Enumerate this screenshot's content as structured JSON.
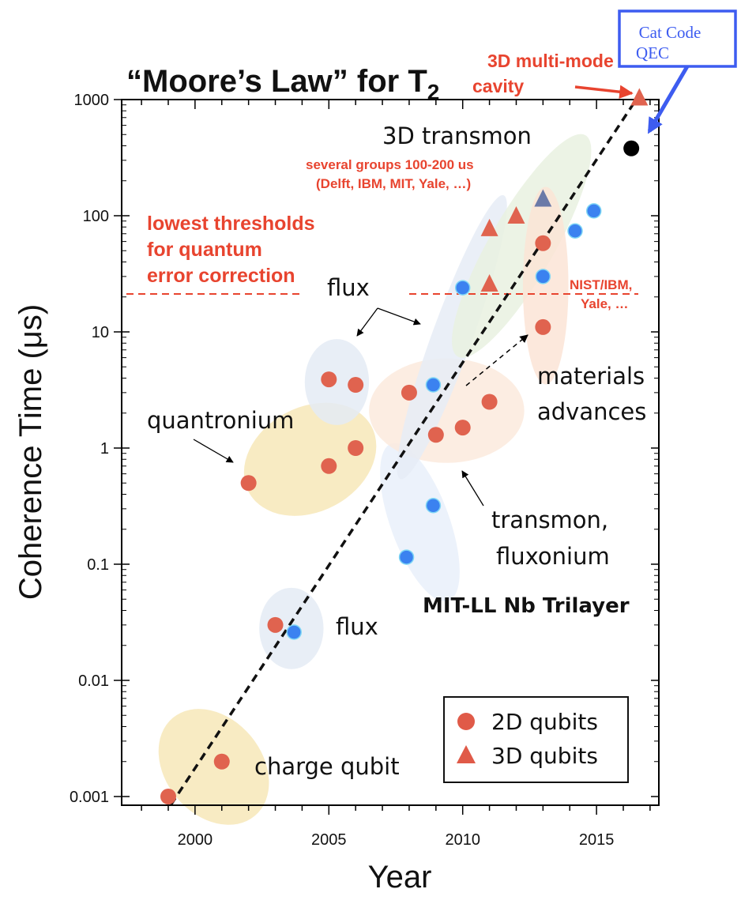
{
  "chart_data": {
    "type": "scatter",
    "title": "“Moore’s Law” for T",
    "title_subscript": "2",
    "xlabel": "Year",
    "ylabel": "Coherence Time (μs)",
    "xlim": [
      1997.8,
      2017.2
    ],
    "ylim": [
      0.0009,
      1100
    ],
    "yscale": "log",
    "x_ticks": [
      2000,
      2005,
      2010,
      2015
    ],
    "x_tick_labels": [
      "2000",
      "2005",
      "2010",
      "2015"
    ],
    "y_ticks": [
      0.001,
      0.01,
      0.1,
      1,
      10,
      100,
      1000
    ],
    "y_tick_labels": [
      "0.001",
      "0.01",
      "0.1",
      "1",
      "10",
      "100",
      "1000"
    ],
    "legend": {
      "placement": "bottom-right",
      "entries": [
        {
          "label": "2D qubits",
          "marker": "circle",
          "color": "#e05a48"
        },
        {
          "label": "3D qubits",
          "marker": "triangle",
          "color": "#e05a48"
        }
      ]
    },
    "series": [
      {
        "marker": "circle",
        "color": "#e0634f",
        "points": [
          {
            "x": 1999,
            "y": 0.001
          },
          {
            "x": 2001,
            "y": 0.002
          },
          {
            "x": 2003,
            "y": 0.03
          },
          {
            "x": 2002,
            "y": 0.5
          },
          {
            "x": 2005,
            "y": 0.7
          },
          {
            "x": 2006,
            "y": 1
          },
          {
            "x": 2005,
            "y": 3.9
          },
          {
            "x": 2006,
            "y": 3.5
          },
          {
            "x": 2008,
            "y": 3
          },
          {
            "x": 2009,
            "y": 1.3
          },
          {
            "x": 2010,
            "y": 1.5
          },
          {
            "x": 2011,
            "y": 2.5
          },
          {
            "x": 2013,
            "y": 11
          },
          {
            "x": 2013,
            "y": 58
          }
        ]
      },
      {
        "marker": "circle",
        "color": "#3b82f0",
        "points": [
          {
            "x": 2003.7,
            "y": 0.026
          },
          {
            "x": 2007.9,
            "y": 0.115
          },
          {
            "x": 2008.9,
            "y": 0.32
          },
          {
            "x": 2008.9,
            "y": 3.5
          },
          {
            "x": 2010,
            "y": 24
          },
          {
            "x": 2013,
            "y": 30
          },
          {
            "x": 2014.2,
            "y": 74
          },
          {
            "x": 2014.9,
            "y": 110
          }
        ]
      },
      {
        "marker": "triangle",
        "color": "#e0634f",
        "points": [
          {
            "x": 2011,
            "y": 26
          },
          {
            "x": 2011,
            "y": 78
          },
          {
            "x": 2012,
            "y": 100
          },
          {
            "x": 2016.6,
            "y": 1040
          }
        ]
      },
      {
        "marker": "triangle",
        "color": "#6b7aa8",
        "points": [
          {
            "x": 2013,
            "y": 140
          }
        ]
      },
      {
        "marker": "circle",
        "color": "#000000",
        "points": [
          {
            "x": 2016.3,
            "y": 380
          }
        ]
      }
    ],
    "trend_line": {
      "from": {
        "x": 1999.1,
        "y": 0.00085
      },
      "to": {
        "x": 2016.6,
        "y": 1100
      }
    },
    "threshold_y": 20,
    "regions": [
      {
        "cx": 2000.7,
        "cy": 0.0018,
        "rx": 1.8,
        "ry": 0.55,
        "angle": -40,
        "color": "#f7e8b8"
      },
      {
        "cx": 2003.6,
        "cy": 0.028,
        "rx": 1.2,
        "ry": 0.35,
        "angle": 0,
        "color": "#e4ebf5"
      },
      {
        "cx": 2004.3,
        "cy": 0.8,
        "rx": 2.6,
        "ry": 0.45,
        "angle": -28,
        "color": "#f7e8b8"
      },
      {
        "cx": 2005.3,
        "cy": 3.7,
        "rx": 1.2,
        "ry": 0.37,
        "angle": 0,
        "color": "#e4ebf5"
      },
      {
        "cx": 2008.4,
        "cy": 0.23,
        "rx": 1.1,
        "ry": 0.72,
        "angle": -20,
        "color": "#e9f0fa"
      },
      {
        "cx": 2009.4,
        "cy": 2.1,
        "rx": 2.9,
        "ry": 0.45,
        "angle": 0,
        "color": "#fbeadd"
      },
      {
        "cx": 2009.6,
        "cy": 9,
        "rx": 0.75,
        "ry": 1.3,
        "angle": 20,
        "color": "#e6ecf6"
      },
      {
        "cx": 2012.2,
        "cy": 55,
        "rx": 1.2,
        "ry": 1.1,
        "angle": 30,
        "color": "#e9f1e0"
      },
      {
        "cx": 2013.1,
        "cy": 25,
        "rx": 0.85,
        "ry": 0.85,
        "angle": 0,
        "color": "#fbe4d6"
      }
    ],
    "annotations": {
      "multimode": [
        "3D multi-mode",
        "cavity"
      ],
      "cat_code": [
        "Cat Code",
        "QEC"
      ],
      "transmon_3d": "3D transmon",
      "groups": [
        "several groups 100-200 us",
        "(Delft, IBM, MIT, Yale, …)"
      ],
      "thresholds": [
        "lowest thresholds",
        "for quantum",
        "error correction"
      ],
      "nist": [
        "NIST/IBM,",
        "Yale, …"
      ],
      "flux_top": "flux",
      "materials": [
        "materials",
        "advances"
      ],
      "quantronium": "quantronium",
      "transmon_flux": [
        "transmon,",
        "fluxonium"
      ],
      "mitll": "MIT-LL Nb Trilayer",
      "flux_bottom": "flux",
      "charge_qubit": "charge qubit"
    }
  }
}
